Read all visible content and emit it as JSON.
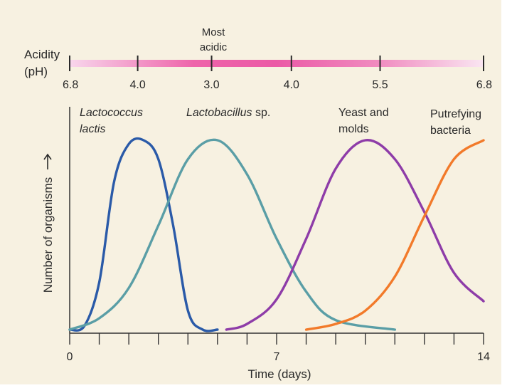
{
  "chart_data": {
    "type": "line",
    "xlabel": "Time (days)",
    "ylabel": "Number of organisms",
    "xlim": [
      0,
      14
    ],
    "x_tick_labels": [
      "0",
      "7",
      "14"
    ],
    "x_minor_ticks": [
      0,
      1,
      2,
      3,
      4,
      5,
      6,
      7,
      8,
      9,
      10,
      11,
      12,
      13,
      14
    ],
    "acidity_scale": {
      "label_line1": "Acidity",
      "label_line2": "(pH)",
      "annotation_line1": "Most",
      "annotation_line2": "acidic",
      "ticks": [
        {
          "day": 0,
          "pH": "6.8"
        },
        {
          "day": 2.3,
          "pH": "4.0"
        },
        {
          "day": 4.8,
          "pH": "3.0"
        },
        {
          "day": 7.5,
          "pH": "4.0"
        },
        {
          "day": 10.5,
          "pH": "5.5"
        },
        {
          "day": 14,
          "pH": "6.8"
        }
      ]
    },
    "series": [
      {
        "name": "Lactococcus lactis",
        "name_line1": "Lactococcus",
        "name_line2": "lactis",
        "color": "#2a5aa8",
        "points": [
          [
            0,
            0.0
          ],
          [
            0.5,
            0.02
          ],
          [
            1,
            0.25
          ],
          [
            1.5,
            0.78
          ],
          [
            2,
            0.98
          ],
          [
            2.5,
            1.0
          ],
          [
            3,
            0.9
          ],
          [
            3.5,
            0.55
          ],
          [
            4,
            0.1
          ],
          [
            4.5,
            0.0
          ],
          [
            5,
            0.0
          ]
        ]
      },
      {
        "name": "Lactobacillus sp.",
        "name_line1": "Lactobacillus",
        "name_line2": " sp.",
        "color": "#5a9ea6",
        "points": [
          [
            0,
            0.0
          ],
          [
            1,
            0.06
          ],
          [
            2,
            0.22
          ],
          [
            3,
            0.55
          ],
          [
            4,
            0.9
          ],
          [
            5,
            1.0
          ],
          [
            6,
            0.82
          ],
          [
            7,
            0.48
          ],
          [
            8,
            0.2
          ],
          [
            9,
            0.05
          ],
          [
            11,
            0.0
          ]
        ]
      },
      {
        "name": "Yeast and molds",
        "name_line1": "Yeast and",
        "name_line2": "molds",
        "color": "#8e3ca8",
        "points": [
          [
            5.3,
            0.0
          ],
          [
            6,
            0.03
          ],
          [
            7,
            0.16
          ],
          [
            8,
            0.48
          ],
          [
            9,
            0.85
          ],
          [
            10,
            1.0
          ],
          [
            11,
            0.9
          ],
          [
            12,
            0.62
          ],
          [
            13,
            0.3
          ],
          [
            14,
            0.15
          ]
        ]
      },
      {
        "name": "Putrefying bacteria",
        "name_line1": "Putrefying",
        "name_line2": "bacteria",
        "color": "#f27a2a",
        "points": [
          [
            8,
            0.0
          ],
          [
            9,
            0.03
          ],
          [
            10,
            0.1
          ],
          [
            11,
            0.28
          ],
          [
            12,
            0.6
          ],
          [
            13,
            0.9
          ],
          [
            14,
            1.0
          ]
        ]
      }
    ]
  }
}
